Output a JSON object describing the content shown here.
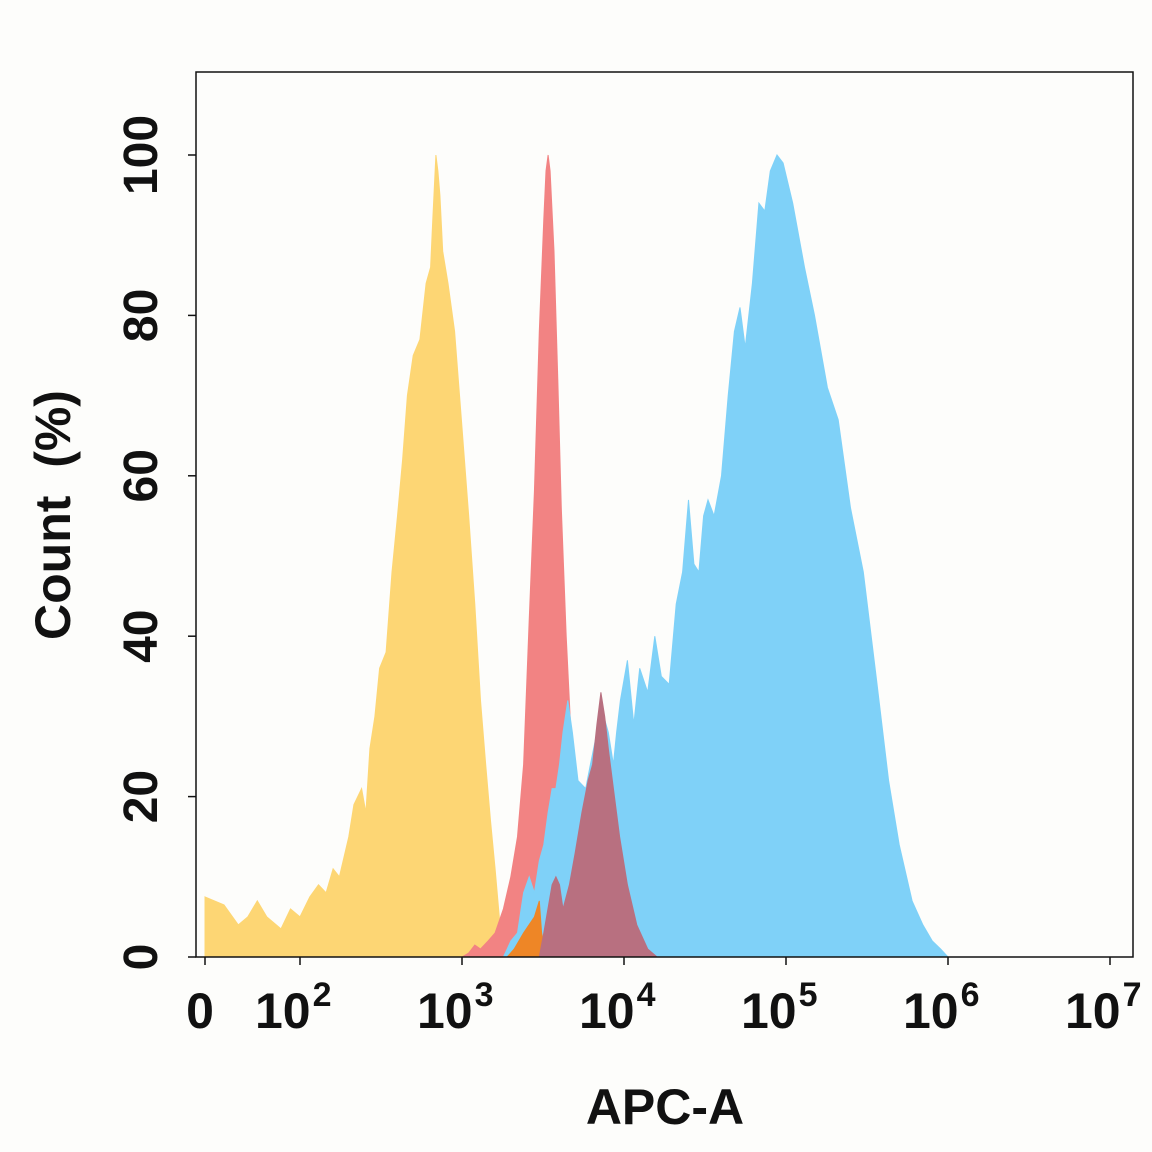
{
  "chart_data": {
    "type": "area",
    "title": "",
    "xlabel": "APC-A",
    "ylabel": "Count  (%)",
    "x_scale": "biexponential (linear near 0, log10 above ~10^2)",
    "xlim": [
      0,
      10000000
    ],
    "ylim": [
      0,
      110
    ],
    "x_ticks": [
      {
        "value": 0,
        "base": "0",
        "exp": ""
      },
      {
        "value": 100,
        "base": "10",
        "exp": "2"
      },
      {
        "value": 1000,
        "base": "10",
        "exp": "3"
      },
      {
        "value": 10000,
        "base": "10",
        "exp": "4"
      },
      {
        "value": 100000,
        "base": "10",
        "exp": "5"
      },
      {
        "value": 1000000,
        "base": "10",
        "exp": "6"
      },
      {
        "value": 10000000,
        "base": "10",
        "exp": "7"
      }
    ],
    "y_ticks": [
      0,
      20,
      40,
      60,
      80,
      100
    ],
    "grid": false,
    "legend": "none",
    "series": [
      {
        "color": "#fdd674",
        "points": [
          [
            0,
            7.5
          ],
          [
            20,
            6.5
          ],
          [
            35,
            4
          ],
          [
            45,
            5
          ],
          [
            55,
            7
          ],
          [
            65,
            5
          ],
          [
            80,
            3.5
          ],
          [
            90,
            6
          ],
          [
            100,
            5
          ],
          [
            115,
            7.5
          ],
          [
            130,
            9
          ],
          [
            145,
            8
          ],
          [
            160,
            11
          ],
          [
            175,
            10
          ],
          [
            200,
            15
          ],
          [
            215,
            19
          ],
          [
            240,
            21
          ],
          [
            255,
            18
          ],
          [
            270,
            26
          ],
          [
            290,
            30
          ],
          [
            310,
            36
          ],
          [
            340,
            38
          ],
          [
            370,
            48
          ],
          [
            400,
            55
          ],
          [
            430,
            62
          ],
          [
            460,
            70
          ],
          [
            500,
            75
          ],
          [
            550,
            77
          ],
          [
            600,
            84
          ],
          [
            640,
            86
          ],
          [
            660,
            92
          ],
          [
            690,
            100
          ],
          [
            710,
            98
          ],
          [
            730,
            95
          ],
          [
            760,
            88
          ],
          [
            820,
            84
          ],
          [
            900,
            78
          ],
          [
            1000,
            66
          ],
          [
            1100,
            55
          ],
          [
            1200,
            44
          ],
          [
            1300,
            32
          ],
          [
            1400,
            24
          ],
          [
            1500,
            17
          ],
          [
            1600,
            11
          ],
          [
            1700,
            5
          ],
          [
            1800,
            1.5
          ],
          [
            1900,
            0
          ]
        ]
      },
      {
        "color": "#f28383",
        "points": [
          [
            1000,
            0
          ],
          [
            1100,
            0.5
          ],
          [
            1200,
            1.5
          ],
          [
            1300,
            1
          ],
          [
            1450,
            2
          ],
          [
            1600,
            3
          ],
          [
            1800,
            6
          ],
          [
            2000,
            10
          ],
          [
            2200,
            15
          ],
          [
            2400,
            24
          ],
          [
            2600,
            42
          ],
          [
            2800,
            58
          ],
          [
            3000,
            78
          ],
          [
            3200,
            92
          ],
          [
            3300,
            98
          ],
          [
            3400,
            100
          ],
          [
            3500,
            98
          ],
          [
            3700,
            88
          ],
          [
            3900,
            72
          ],
          [
            4100,
            56
          ],
          [
            4400,
            40
          ],
          [
            4700,
            28
          ],
          [
            5000,
            19
          ],
          [
            5400,
            13
          ],
          [
            5800,
            8
          ],
          [
            6400,
            5
          ],
          [
            7000,
            3
          ],
          [
            8000,
            1.2
          ],
          [
            9500,
            0.4
          ],
          [
            11000,
            0
          ]
        ]
      },
      {
        "color": "#7fd1f8",
        "points": [
          [
            1800,
            0
          ],
          [
            1900,
            1
          ],
          [
            2000,
            2
          ],
          [
            2200,
            3
          ],
          [
            2400,
            8
          ],
          [
            2600,
            10
          ],
          [
            2800,
            8
          ],
          [
            3000,
            12
          ],
          [
            3200,
            14
          ],
          [
            3400,
            18
          ],
          [
            3600,
            21
          ],
          [
            3800,
            21
          ],
          [
            4000,
            24
          ],
          [
            4200,
            28
          ],
          [
            4500,
            32
          ],
          [
            4800,
            28
          ],
          [
            5200,
            22
          ],
          [
            5800,
            21
          ],
          [
            6200,
            24
          ],
          [
            6800,
            28
          ],
          [
            7500,
            30
          ],
          [
            8000,
            28
          ],
          [
            8600,
            24
          ],
          [
            9000,
            28
          ],
          [
            9500,
            32
          ],
          [
            10500,
            37
          ],
          [
            11500,
            29
          ],
          [
            12500,
            36
          ],
          [
            14000,
            33
          ],
          [
            15500,
            40
          ],
          [
            17000,
            35
          ],
          [
            19000,
            34
          ],
          [
            21000,
            44
          ],
          [
            23000,
            48
          ],
          [
            25000,
            57
          ],
          [
            27000,
            49
          ],
          [
            29000,
            48
          ],
          [
            31000,
            55
          ],
          [
            33000,
            57
          ],
          [
            36000,
            55
          ],
          [
            40000,
            60
          ],
          [
            44000,
            70
          ],
          [
            48000,
            78
          ],
          [
            52000,
            81
          ],
          [
            56000,
            76
          ],
          [
            62000,
            84
          ],
          [
            68000,
            94
          ],
          [
            74000,
            93
          ],
          [
            80000,
            98
          ],
          [
            88000,
            100
          ],
          [
            96000,
            99
          ],
          [
            110000,
            94
          ],
          [
            130000,
            86
          ],
          [
            150000,
            80
          ],
          [
            180000,
            71
          ],
          [
            210000,
            67
          ],
          [
            250000,
            56
          ],
          [
            300000,
            48
          ],
          [
            360000,
            35
          ],
          [
            430000,
            22
          ],
          [
            500000,
            14
          ],
          [
            600000,
            7
          ],
          [
            700000,
            4
          ],
          [
            800000,
            2
          ],
          [
            900000,
            1
          ],
          [
            1000000,
            0
          ]
        ]
      },
      {
        "color": "#ee8626",
        "points": [
          [
            1900,
            0
          ],
          [
            2100,
            1
          ],
          [
            2400,
            3
          ],
          [
            2800,
            5
          ],
          [
            3000,
            7
          ],
          [
            3100,
            3
          ],
          [
            3300,
            0
          ]
        ]
      },
      {
        "color": "#b87080",
        "points": [
          [
            3000,
            0
          ],
          [
            3200,
            3
          ],
          [
            3600,
            9
          ],
          [
            3800,
            10
          ],
          [
            4000,
            9
          ],
          [
            4200,
            6
          ],
          [
            4600,
            9
          ],
          [
            5000,
            13
          ],
          [
            5500,
            18
          ],
          [
            6000,
            22
          ],
          [
            6400,
            24
          ],
          [
            6800,
            29
          ],
          [
            7200,
            33
          ],
          [
            7600,
            30
          ],
          [
            8000,
            26
          ],
          [
            8600,
            21
          ],
          [
            9400,
            15
          ],
          [
            10500,
            9
          ],
          [
            12000,
            4
          ],
          [
            14000,
            1
          ],
          [
            16000,
            0
          ]
        ]
      }
    ]
  }
}
